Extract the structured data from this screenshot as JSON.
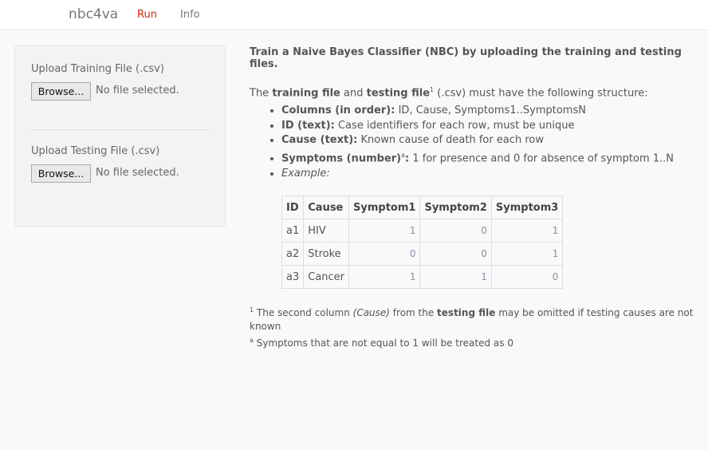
{
  "nav": {
    "brand": "nbc4va",
    "tabs": [
      {
        "label": "Run",
        "active": true
      },
      {
        "label": "Info",
        "active": false
      }
    ]
  },
  "sidebar": {
    "training": {
      "label": "Upload Training File (.csv)",
      "button": "Browse...",
      "status": "No file selected."
    },
    "testing": {
      "label": "Upload Testing File (.csv)",
      "button": "Browse...",
      "status": "No file selected."
    }
  },
  "main": {
    "heading": "Train a Naive Bayes Classifier (NBC) by uploading the training and testing files.",
    "intro": {
      "pre": "The ",
      "training": "training file",
      "and": " and ",
      "testing": "testing file",
      "sup": "1",
      "post": " (.csv) must have the following structure:"
    },
    "bullets": [
      {
        "b": "Columns (in order):",
        "t": " ID, Cause, Symptoms1..SymptomsN"
      },
      {
        "b": "ID (text):",
        "t": " Case identifiers for each row, must be unique"
      },
      {
        "b": "Cause (text):",
        "t": " Known cause of death for each row"
      },
      {
        "b": "Symptoms (number)",
        "sup": "a",
        "colon": ":",
        "t": " 1 for presence and 0 for absence of symptom 1..N"
      },
      {
        "i": "Example:"
      }
    ],
    "table": {
      "headers": [
        "ID",
        "Cause",
        "Symptom1",
        "Symptom2",
        "Symptom3"
      ],
      "rows": [
        [
          "a1",
          "HIV",
          "1",
          "0",
          "1"
        ],
        [
          "a2",
          "Stroke",
          "0",
          "0",
          "1"
        ],
        [
          "a3",
          "Cancer",
          "1",
          "1",
          "0"
        ]
      ]
    },
    "footnotes": {
      "f1": {
        "sup": "1",
        "pre": " The second column ",
        "i": "(Cause)",
        "mid": " from the ",
        "b": "testing file",
        "post": " may be omitted if testing causes are not known"
      },
      "fa": {
        "sup": "a",
        "t": " Symptoms that are not equal to 1 will be treated as 0"
      }
    }
  }
}
